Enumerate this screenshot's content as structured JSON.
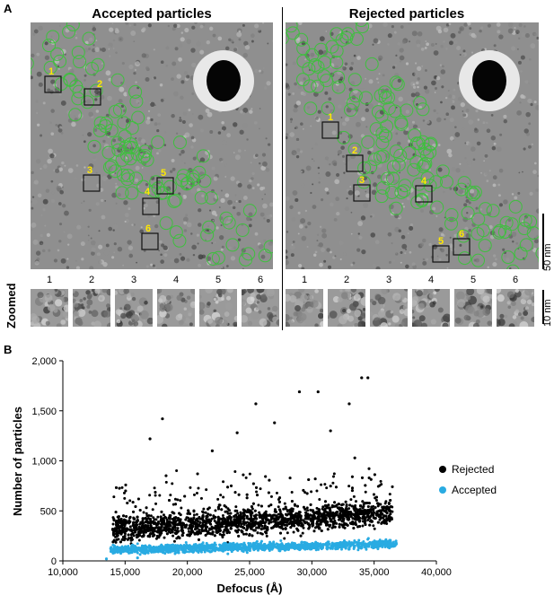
{
  "panel_a": {
    "letter": "A",
    "title_left": "Accepted particles",
    "title_right": "Rejected particles",
    "zoomed_label": "Zoomed",
    "scale_large": "50 nm",
    "scale_small": "10 nm",
    "left_box_labels": [
      "1",
      "2",
      "3",
      "4",
      "5",
      "6"
    ],
    "right_box_labels": [
      "1",
      "2",
      "3",
      "4",
      "5",
      "6"
    ],
    "left_zoom_numbers": [
      "1",
      "2",
      "3",
      "4",
      "5",
      "6"
    ],
    "right_zoom_numbers": [
      "1",
      "2",
      "3",
      "4",
      "5",
      "6"
    ],
    "colors": {
      "particle_circle": "#3fbf3f",
      "box_label": "#ffe800"
    }
  },
  "panel_b": {
    "letter": "B",
    "legend": [
      "Rejected",
      "Accepted"
    ],
    "colors": {
      "rejected": "#000000",
      "accepted": "#29abe2"
    }
  },
  "chart_data": {
    "type": "scatter",
    "title": "",
    "xlabel": "Defocus (Å)",
    "ylabel": "Number of particles",
    "xlim": [
      10000,
      40000
    ],
    "ylim": [
      0,
      2000
    ],
    "x_ticks": [
      "10,000",
      "15,000",
      "20,000",
      "25,000",
      "30,000",
      "35,000",
      "40,000"
    ],
    "y_ticks": [
      "0",
      "500",
      "1,000",
      "1,500",
      "2,000"
    ],
    "grid": false,
    "legend_position": "right",
    "series": [
      {
        "name": "Rejected",
        "x_range": [
          14000,
          36500
        ],
        "y_typical_range": [
          150,
          700
        ],
        "outliers": [
          [
            34000,
            1830
          ],
          [
            34500,
            1830
          ],
          [
            25500,
            1570
          ],
          [
            29000,
            1690
          ],
          [
            30500,
            1690
          ],
          [
            18000,
            1420
          ],
          [
            17000,
            1220
          ],
          [
            33000,
            1570
          ],
          [
            27000,
            1380
          ],
          [
            24000,
            1280
          ],
          [
            31500,
            1300
          ],
          [
            22000,
            1100
          ]
        ]
      },
      {
        "name": "Accepted",
        "x_range": [
          13000,
          36800
        ],
        "y_typical_range": [
          50,
          220
        ],
        "outliers": [
          [
            13500,
            20
          ],
          [
            16000,
            30
          ]
        ]
      }
    ]
  }
}
